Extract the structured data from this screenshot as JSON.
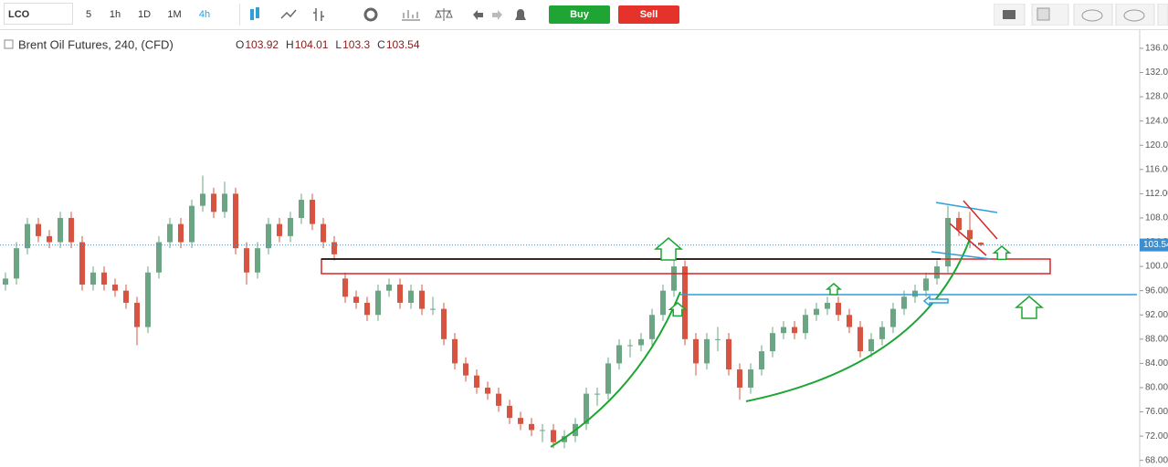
{
  "toolbar": {
    "symbol": "LCO",
    "intervals": [
      "5",
      "1h",
      "1D",
      "1M",
      "4h"
    ],
    "buy": "Buy",
    "sell": "Sell"
  },
  "chart_data": {
    "type": "candlestick",
    "title": "Brent Oil Futures, 240, (CFD)",
    "ohlc_labels": [
      "O",
      "H",
      "L",
      "C"
    ],
    "up_color": "#6ba583",
    "down_color": "#d75442",
    "ylim": [
      66.9,
      138.7
    ],
    "yticks": [
      {
        "value": 68,
        "label": "68.00"
      },
      {
        "value": 72,
        "label": "72.00"
      },
      {
        "value": 76,
        "label": "76.00"
      },
      {
        "value": 80,
        "label": "80.00"
      },
      {
        "value": 84,
        "label": "84.00"
      },
      {
        "value": 88,
        "label": "88.00"
      },
      {
        "value": 92,
        "label": "92.00"
      },
      {
        "value": 96,
        "label": "96.00"
      },
      {
        "value": 100,
        "label": "100.00"
      },
      {
        "value": 104,
        "label": "104.00"
      },
      {
        "value": 108,
        "label": "108.00"
      },
      {
        "value": 112,
        "label": "112.00"
      },
      {
        "value": 116,
        "label": "116.00"
      },
      {
        "value": 120,
        "label": "120.00"
      },
      {
        "value": 124,
        "label": "124.00"
      },
      {
        "value": 128,
        "label": "128.00"
      },
      {
        "value": 132,
        "label": "132.00"
      },
      {
        "value": 136,
        "label": "136.00"
      }
    ],
    "ohlc": [
      [
        97,
        99,
        96,
        98
      ],
      [
        98,
        104,
        97,
        103
      ],
      [
        103,
        108,
        102,
        107
      ],
      [
        107,
        108,
        104,
        105
      ],
      [
        105,
        106,
        103,
        104
      ],
      [
        104,
        109,
        103,
        108
      ],
      [
        108,
        109,
        103,
        104
      ],
      [
        104,
        105,
        96,
        97
      ],
      [
        97,
        100,
        96,
        99
      ],
      [
        99,
        100,
        96,
        97
      ],
      [
        97,
        98,
        95,
        96
      ],
      [
        96,
        97,
        93,
        94
      ],
      [
        94,
        95,
        87,
        90
      ],
      [
        90,
        100,
        89,
        99
      ],
      [
        99,
        105,
        98,
        104
      ],
      [
        104,
        108,
        103,
        107
      ],
      [
        107,
        108,
        103,
        104
      ],
      [
        104,
        111,
        103,
        110
      ],
      [
        110,
        115,
        109,
        112
      ],
      [
        112,
        113,
        108,
        109
      ],
      [
        109,
        114,
        108,
        112
      ],
      [
        112,
        113,
        102,
        103
      ],
      [
        103,
        104,
        97,
        99
      ],
      [
        99,
        104,
        98,
        103
      ],
      [
        103,
        108,
        102,
        107
      ],
      [
        107,
        108,
        104,
        105
      ],
      [
        105,
        109,
        104,
        108
      ],
      [
        108,
        112,
        107,
        111
      ],
      [
        111,
        112,
        106,
        107
      ],
      [
        107,
        108,
        103,
        104
      ],
      [
        104,
        105,
        101,
        102
      ],
      [
        98,
        99,
        94,
        95
      ],
      [
        95,
        96,
        93,
        94
      ],
      [
        94,
        95,
        91,
        92
      ],
      [
        92,
        97,
        91,
        96
      ],
      [
        96,
        98,
        95,
        97
      ],
      [
        97,
        98,
        93,
        94
      ],
      [
        94,
        97,
        93,
        96
      ],
      [
        96,
        97,
        92,
        93
      ],
      [
        93,
        95,
        92,
        93
      ],
      [
        93,
        94,
        87,
        88
      ],
      [
        88,
        89,
        83,
        84
      ],
      [
        84,
        85,
        81,
        82
      ],
      [
        82,
        83,
        79,
        80
      ],
      [
        80,
        81,
        78,
        79
      ],
      [
        79,
        80,
        76,
        77
      ],
      [
        77,
        78,
        74,
        75
      ],
      [
        75,
        76,
        73,
        74
      ],
      [
        74,
        75,
        72,
        73
      ],
      [
        73,
        74,
        71,
        73
      ],
      [
        73,
        74,
        70,
        71
      ],
      [
        71,
        73,
        70,
        72
      ],
      [
        72,
        75,
        71,
        74
      ],
      [
        74,
        80,
        73,
        79
      ],
      [
        79,
        80,
        77,
        79
      ],
      [
        79,
        85,
        78,
        84
      ],
      [
        84,
        88,
        83,
        87
      ],
      [
        87,
        88,
        85,
        87
      ],
      [
        87,
        89,
        86,
        88
      ],
      [
        88,
        93,
        87,
        92
      ],
      [
        92,
        97,
        91,
        96
      ],
      [
        96,
        101,
        95,
        100
      ],
      [
        100,
        101,
        87,
        88
      ],
      [
        88,
        89,
        82,
        84
      ],
      [
        84,
        89,
        83,
        88
      ],
      [
        88,
        90,
        86,
        88
      ],
      [
        88,
        89,
        82,
        83
      ],
      [
        83,
        84,
        78,
        80
      ],
      [
        80,
        84,
        79,
        83
      ],
      [
        83,
        87,
        82,
        86
      ],
      [
        86,
        90,
        85,
        89
      ],
      [
        89,
        91,
        88,
        90
      ],
      [
        90,
        91,
        88,
        89
      ],
      [
        89,
        93,
        88,
        92
      ],
      [
        92,
        94,
        91,
        93
      ],
      [
        93,
        95,
        92,
        94
      ],
      [
        94,
        95,
        91,
        92
      ],
      [
        92,
        93,
        89,
        90
      ],
      [
        90,
        91,
        85,
        86
      ],
      [
        86,
        89,
        85,
        88
      ],
      [
        88,
        91,
        87,
        90
      ],
      [
        90,
        94,
        89,
        93
      ],
      [
        93,
        96,
        92,
        95
      ],
      [
        95,
        97,
        94,
        96
      ],
      [
        96,
        99,
        95,
        98
      ],
      [
        98,
        101,
        97,
        100
      ],
      [
        100,
        110,
        99,
        108
      ],
      [
        108,
        109,
        105,
        106
      ],
      [
        106,
        109,
        103,
        104.5
      ],
      [
        103.92,
        104.01,
        103.3,
        103.54
      ]
    ]
  }
}
